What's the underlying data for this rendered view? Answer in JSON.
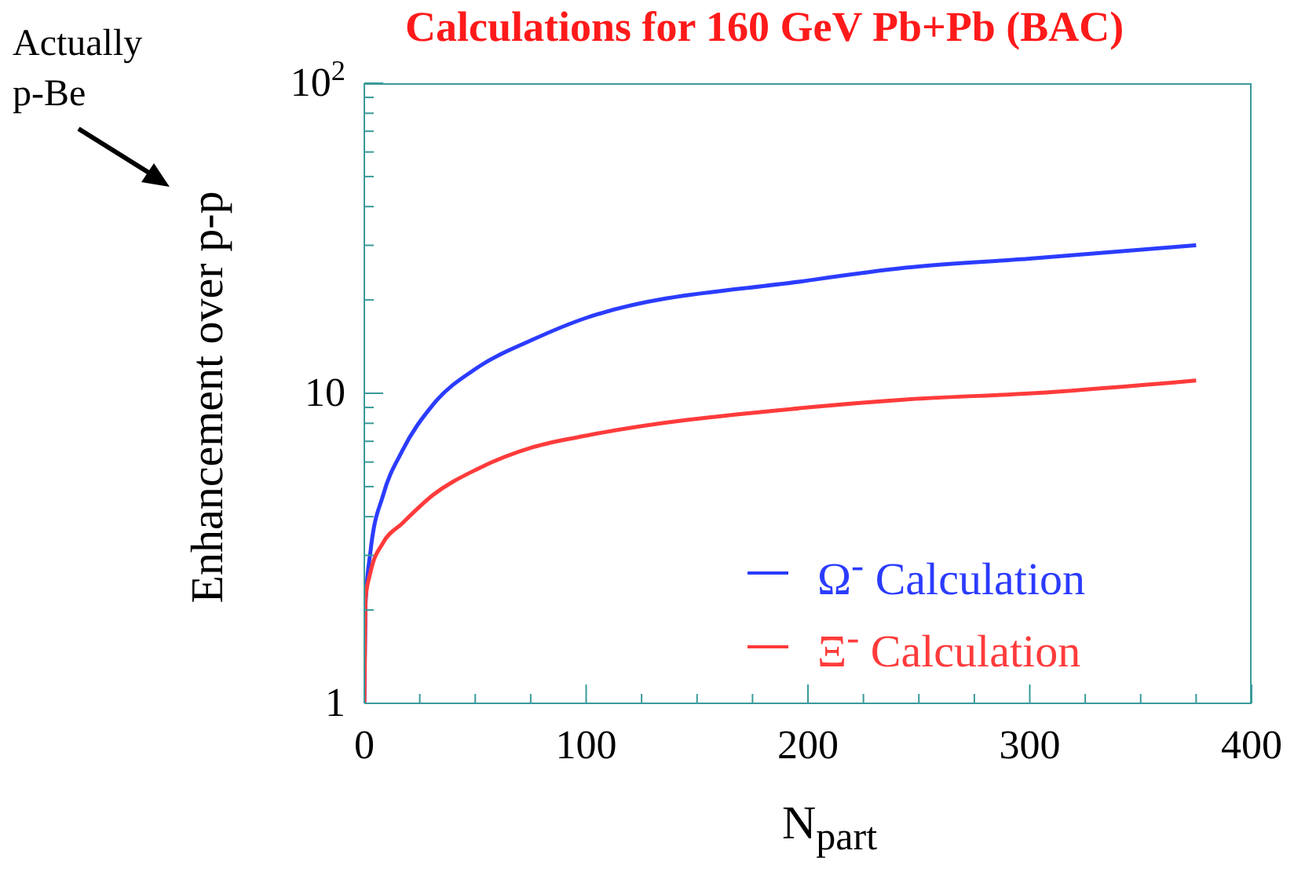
{
  "chart_data": {
    "type": "line",
    "title": "Calculations for 160 GeV Pb+Pb (BAC)",
    "xlabel": "N$_{part}$",
    "ylabel": "Enhancement over p-p",
    "annotations": [
      "Actually p-Be"
    ],
    "log": "y",
    "legend": "bottom right",
    "xlim": [
      0,
      400
    ],
    "xticks": [
      0,
      {
        "value": 25,
        "label": null
      },
      {
        "value": 50,
        "label": null
      },
      {
        "value": 75,
        "label": null
      },
      100,
      {
        "value": 125,
        "label": null
      },
      {
        "value": 150,
        "label": null
      },
      {
        "value": 175,
        "label": null
      },
      200,
      {
        "value": 225,
        "label": null
      },
      {
        "value": 250,
        "label": null
      },
      {
        "value": 275,
        "label": null
      },
      300,
      {
        "value": 325,
        "label": null
      },
      {
        "value": 350,
        "label": null
      },
      {
        "value": 375,
        "label": null
      },
      400
    ],
    "ylim": [
      1,
      100
    ],
    "yticks": [
      1,
      {
        "value": 2,
        "label": null
      },
      {
        "value": 3,
        "label": null
      },
      {
        "value": 4,
        "label": null
      },
      {
        "value": 5,
        "label": null
      },
      {
        "value": 6,
        "label": null
      },
      {
        "value": 7,
        "label": null
      },
      {
        "value": 8,
        "label": null
      },
      {
        "value": 9,
        "label": null
      },
      10,
      {
        "value": 20,
        "label": null
      },
      {
        "value": 30,
        "label": null
      },
      {
        "value": 40,
        "label": null
      },
      {
        "value": 50,
        "label": null
      },
      {
        "value": 60,
        "label": null
      },
      {
        "value": 70,
        "label": null
      },
      {
        "value": 80,
        "label": null
      },
      {
        "value": 90,
        "label": null
      },
      {
        "value": 100,
        "label": "10$^{2}$"
      }
    ],
    "series": [
      {
        "name": "Ω$^{-}$ Calculation",
        "color": "#2b3cff",
        "x": [
          0,
          0.5,
          2.8,
          8.5,
          17,
          31,
          51,
          76,
          100,
          200,
          244,
          301,
          375
        ],
        "values": [
          1,
          2.06,
          3.1,
          4.7,
          6.5,
          9.2,
          12.1,
          14.9,
          17.5,
          23.1,
          25.4,
          27.2,
          30
        ]
      },
      {
        "name": "Ξ$^{-}$ Calculation",
        "color": "#ff3b3b",
        "x": [
          0,
          0.5,
          2.8,
          8.5,
          17,
          31,
          51,
          76,
          100,
          200,
          244,
          301,
          375
        ],
        "values": [
          1,
          2.16,
          2.65,
          3.3,
          3.8,
          4.7,
          5.7,
          6.7,
          7.3,
          9.0,
          9.55,
          10.0,
          11.0
        ]
      }
    ]
  }
}
